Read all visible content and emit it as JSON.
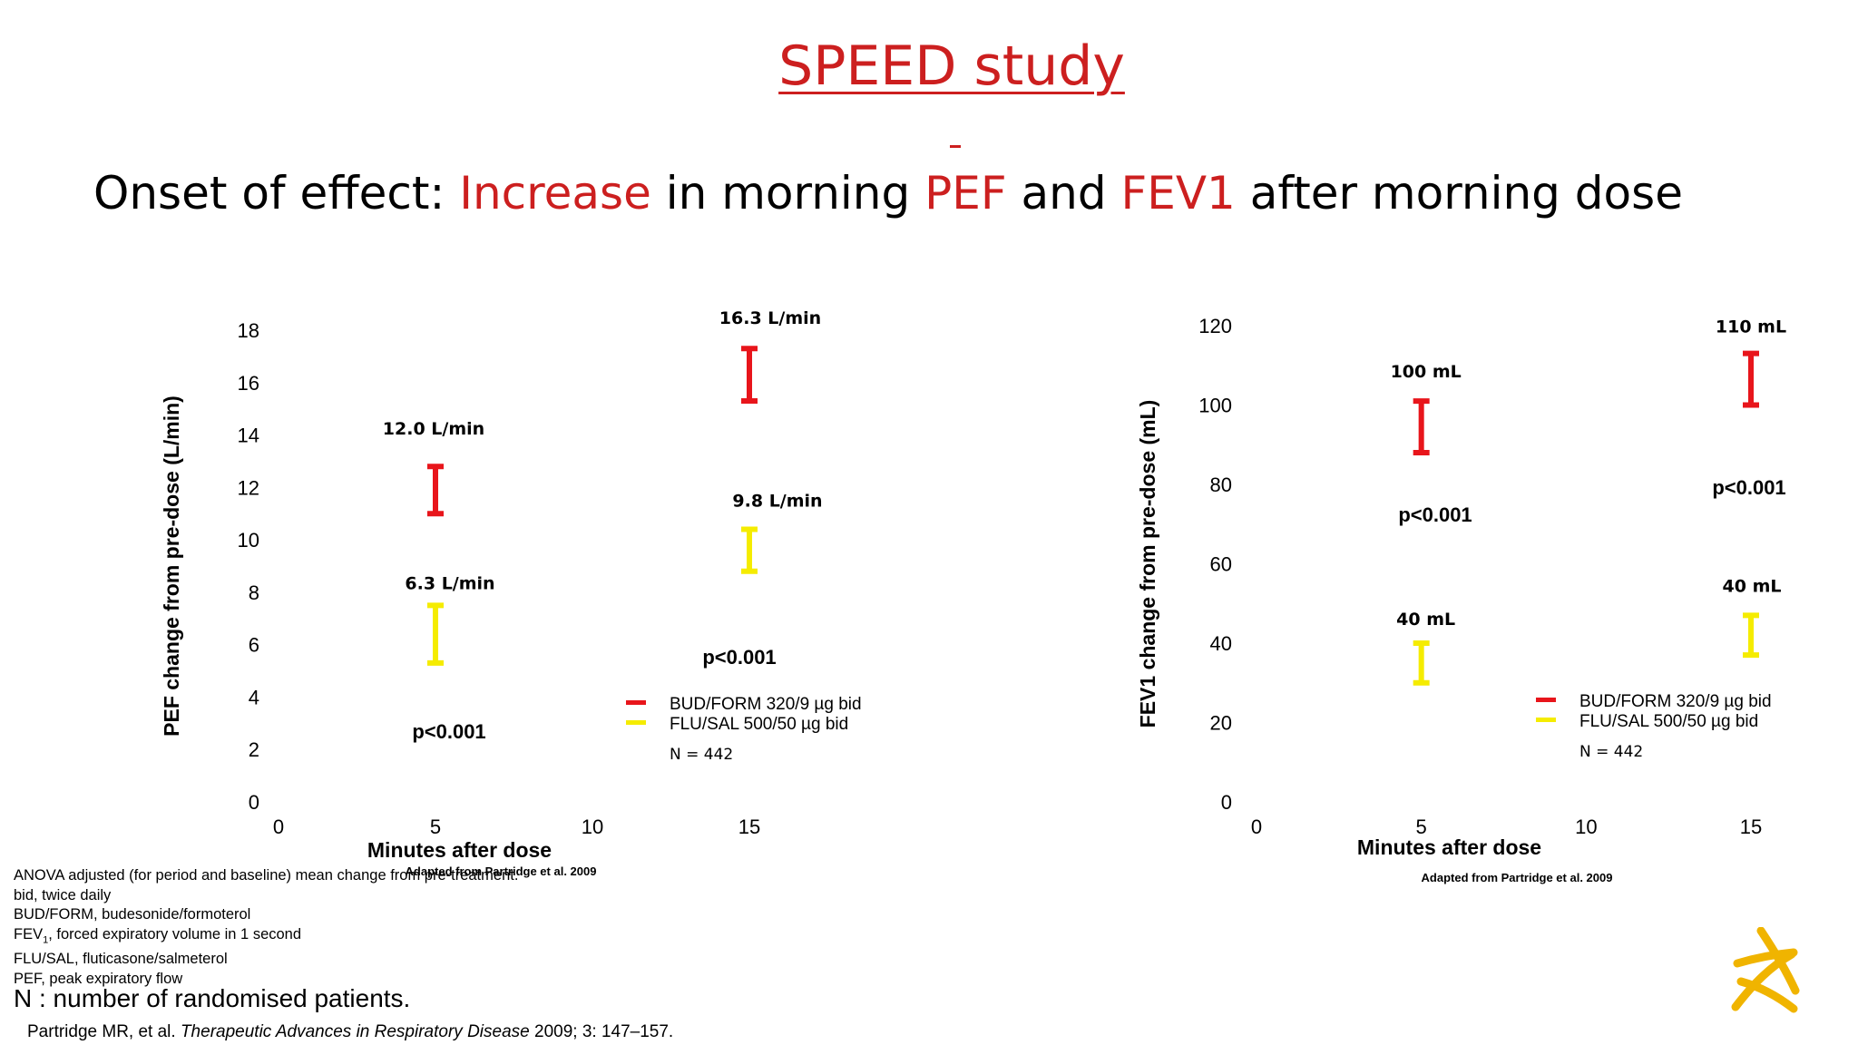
{
  "title": "SPEED study",
  "subtitle": {
    "part1": "Onset of effect: ",
    "part2": "Increase",
    "part3": " in morning ",
    "part4": "PEF",
    "part5": " and ",
    "part6": "FEV1",
    "part7": " after morning dose"
  },
  "colors": {
    "bud_form": "#e8151b",
    "flu_sal": "#f5ec00",
    "title_red": "#cc1f1f",
    "logo": "#f0b400"
  },
  "chart_data": [
    {
      "type": "scatter",
      "ylabel": "PEF change from pre-dose (L/min)",
      "xlabel": "Minutes after dose",
      "xlim": [
        0,
        15
      ],
      "ylim": [
        0,
        18
      ],
      "xticks": [
        0,
        5,
        10,
        15
      ],
      "yticks": [
        0,
        2,
        4,
        6,
        8,
        10,
        12,
        14,
        16,
        18
      ],
      "series": [
        {
          "name": "BUD/FORM 320/9 µg bid",
          "color": "#e8151b",
          "points": [
            {
              "x": 5,
              "low": 11.0,
              "high": 12.8,
              "label": "12.0 L/min"
            },
            {
              "x": 15,
              "low": 15.3,
              "high": 17.3,
              "label": "16.3 L/min"
            }
          ]
        },
        {
          "name": "FLU/SAL 500/50 µg bid",
          "color": "#f5ec00",
          "points": [
            {
              "x": 5,
              "low": 5.3,
              "high": 7.5,
              "label": "6.3 L/min"
            },
            {
              "x": 15,
              "low": 8.8,
              "high": 10.4,
              "label": "9.8 L/min"
            }
          ]
        }
      ],
      "pvalues": [
        "p<0.001",
        "p<0.001"
      ],
      "n": "N = 442",
      "source": "Adapted from Partridge et al.  2009",
      "legend": "bottom-right"
    },
    {
      "type": "scatter",
      "ylabel": "FEV1 change from pre-dose (mL)",
      "xlabel": "Minutes after dose",
      "xlim": [
        0,
        15
      ],
      "ylim": [
        0,
        120
      ],
      "xticks": [
        0,
        5,
        10,
        15
      ],
      "yticks": [
        0,
        20,
        40,
        60,
        80,
        100,
        120
      ],
      "series": [
        {
          "name": "BUD/FORM 320/9 µg bid",
          "color": "#e8151b",
          "points": [
            {
              "x": 5,
              "low": 88,
              "high": 101,
              "label": "100 mL"
            },
            {
              "x": 15,
              "low": 100,
              "high": 113,
              "label": "110 mL"
            }
          ]
        },
        {
          "name": "FLU/SAL 500/50 µg bid",
          "color": "#f5ec00",
          "points": [
            {
              "x": 5,
              "low": 30,
              "high": 40,
              "label": "40 mL"
            },
            {
              "x": 15,
              "low": 37,
              "high": 47,
              "label": "40 mL"
            }
          ]
        }
      ],
      "pvalues": [
        "p<0.001",
        "p<0.001"
      ],
      "n": "N = 442",
      "source": "Adapted from Partridge et al.  2009",
      "legend": "bottom-right"
    }
  ],
  "footnotes": [
    "ANOVA adjusted (for period and baseline) mean change from pre-treatment.",
    "bid, twice daily",
    "BUD/FORM, budesonide/formoterol",
    "FEV1, forced expiratory volume in 1 second",
    "FLU/SAL, fluticasone/salmeterol",
    "PEF, peak expiratory flow"
  ],
  "n_note": "N : number of randomised patients.",
  "citation": {
    "authors": "Partridge MR, et al. ",
    "journal": "Therapeutic Advances in  Respiratory  Disease",
    "rest": " 2009; 3: 147–157."
  },
  "logo_icon": "company-logo-icon"
}
